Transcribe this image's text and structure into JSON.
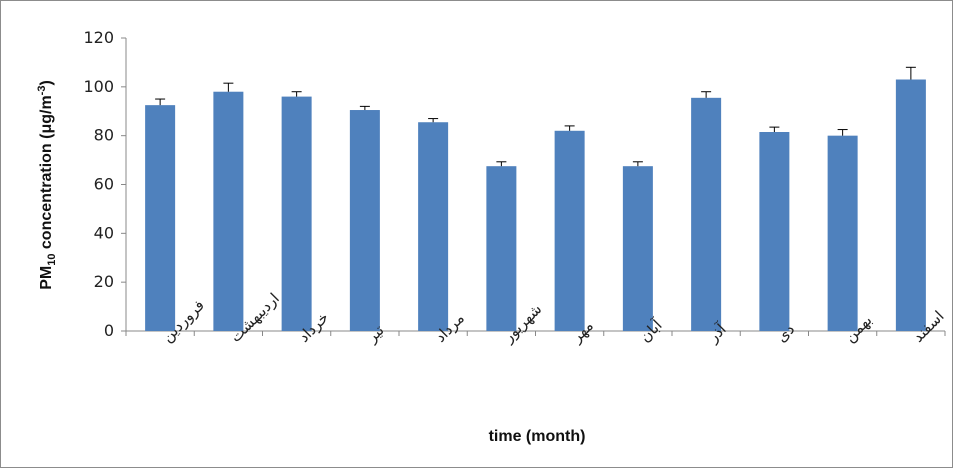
{
  "chart_data": {
    "type": "bar",
    "categories": [
      "فروردین",
      "اردیبهشت",
      "خرداد",
      "تیر",
      "مرداد",
      "شهریور",
      "مهر",
      "آبان",
      "آذر",
      "دی",
      "بهمن",
      "اسفند"
    ],
    "values": [
      92.5,
      98,
      96,
      90.5,
      85.5,
      67.5,
      82,
      67.5,
      95.5,
      81.5,
      80,
      103
    ],
    "error": [
      2.5,
      3.5,
      2,
      1.5,
      1.5,
      1.8,
      2,
      1.8,
      2.5,
      2,
      2.5,
      5
    ],
    "ylim": [
      0,
      120
    ],
    "yticks": [
      0,
      20,
      40,
      60,
      80,
      100,
      120
    ],
    "xlabel": "time (month)",
    "ylabel_parts": [
      "PM",
      "10",
      " concentration (μg/m",
      "-3",
      ")"
    ],
    "bar_color": "#4F81BD",
    "error_color": "#000000",
    "grid": false
  }
}
